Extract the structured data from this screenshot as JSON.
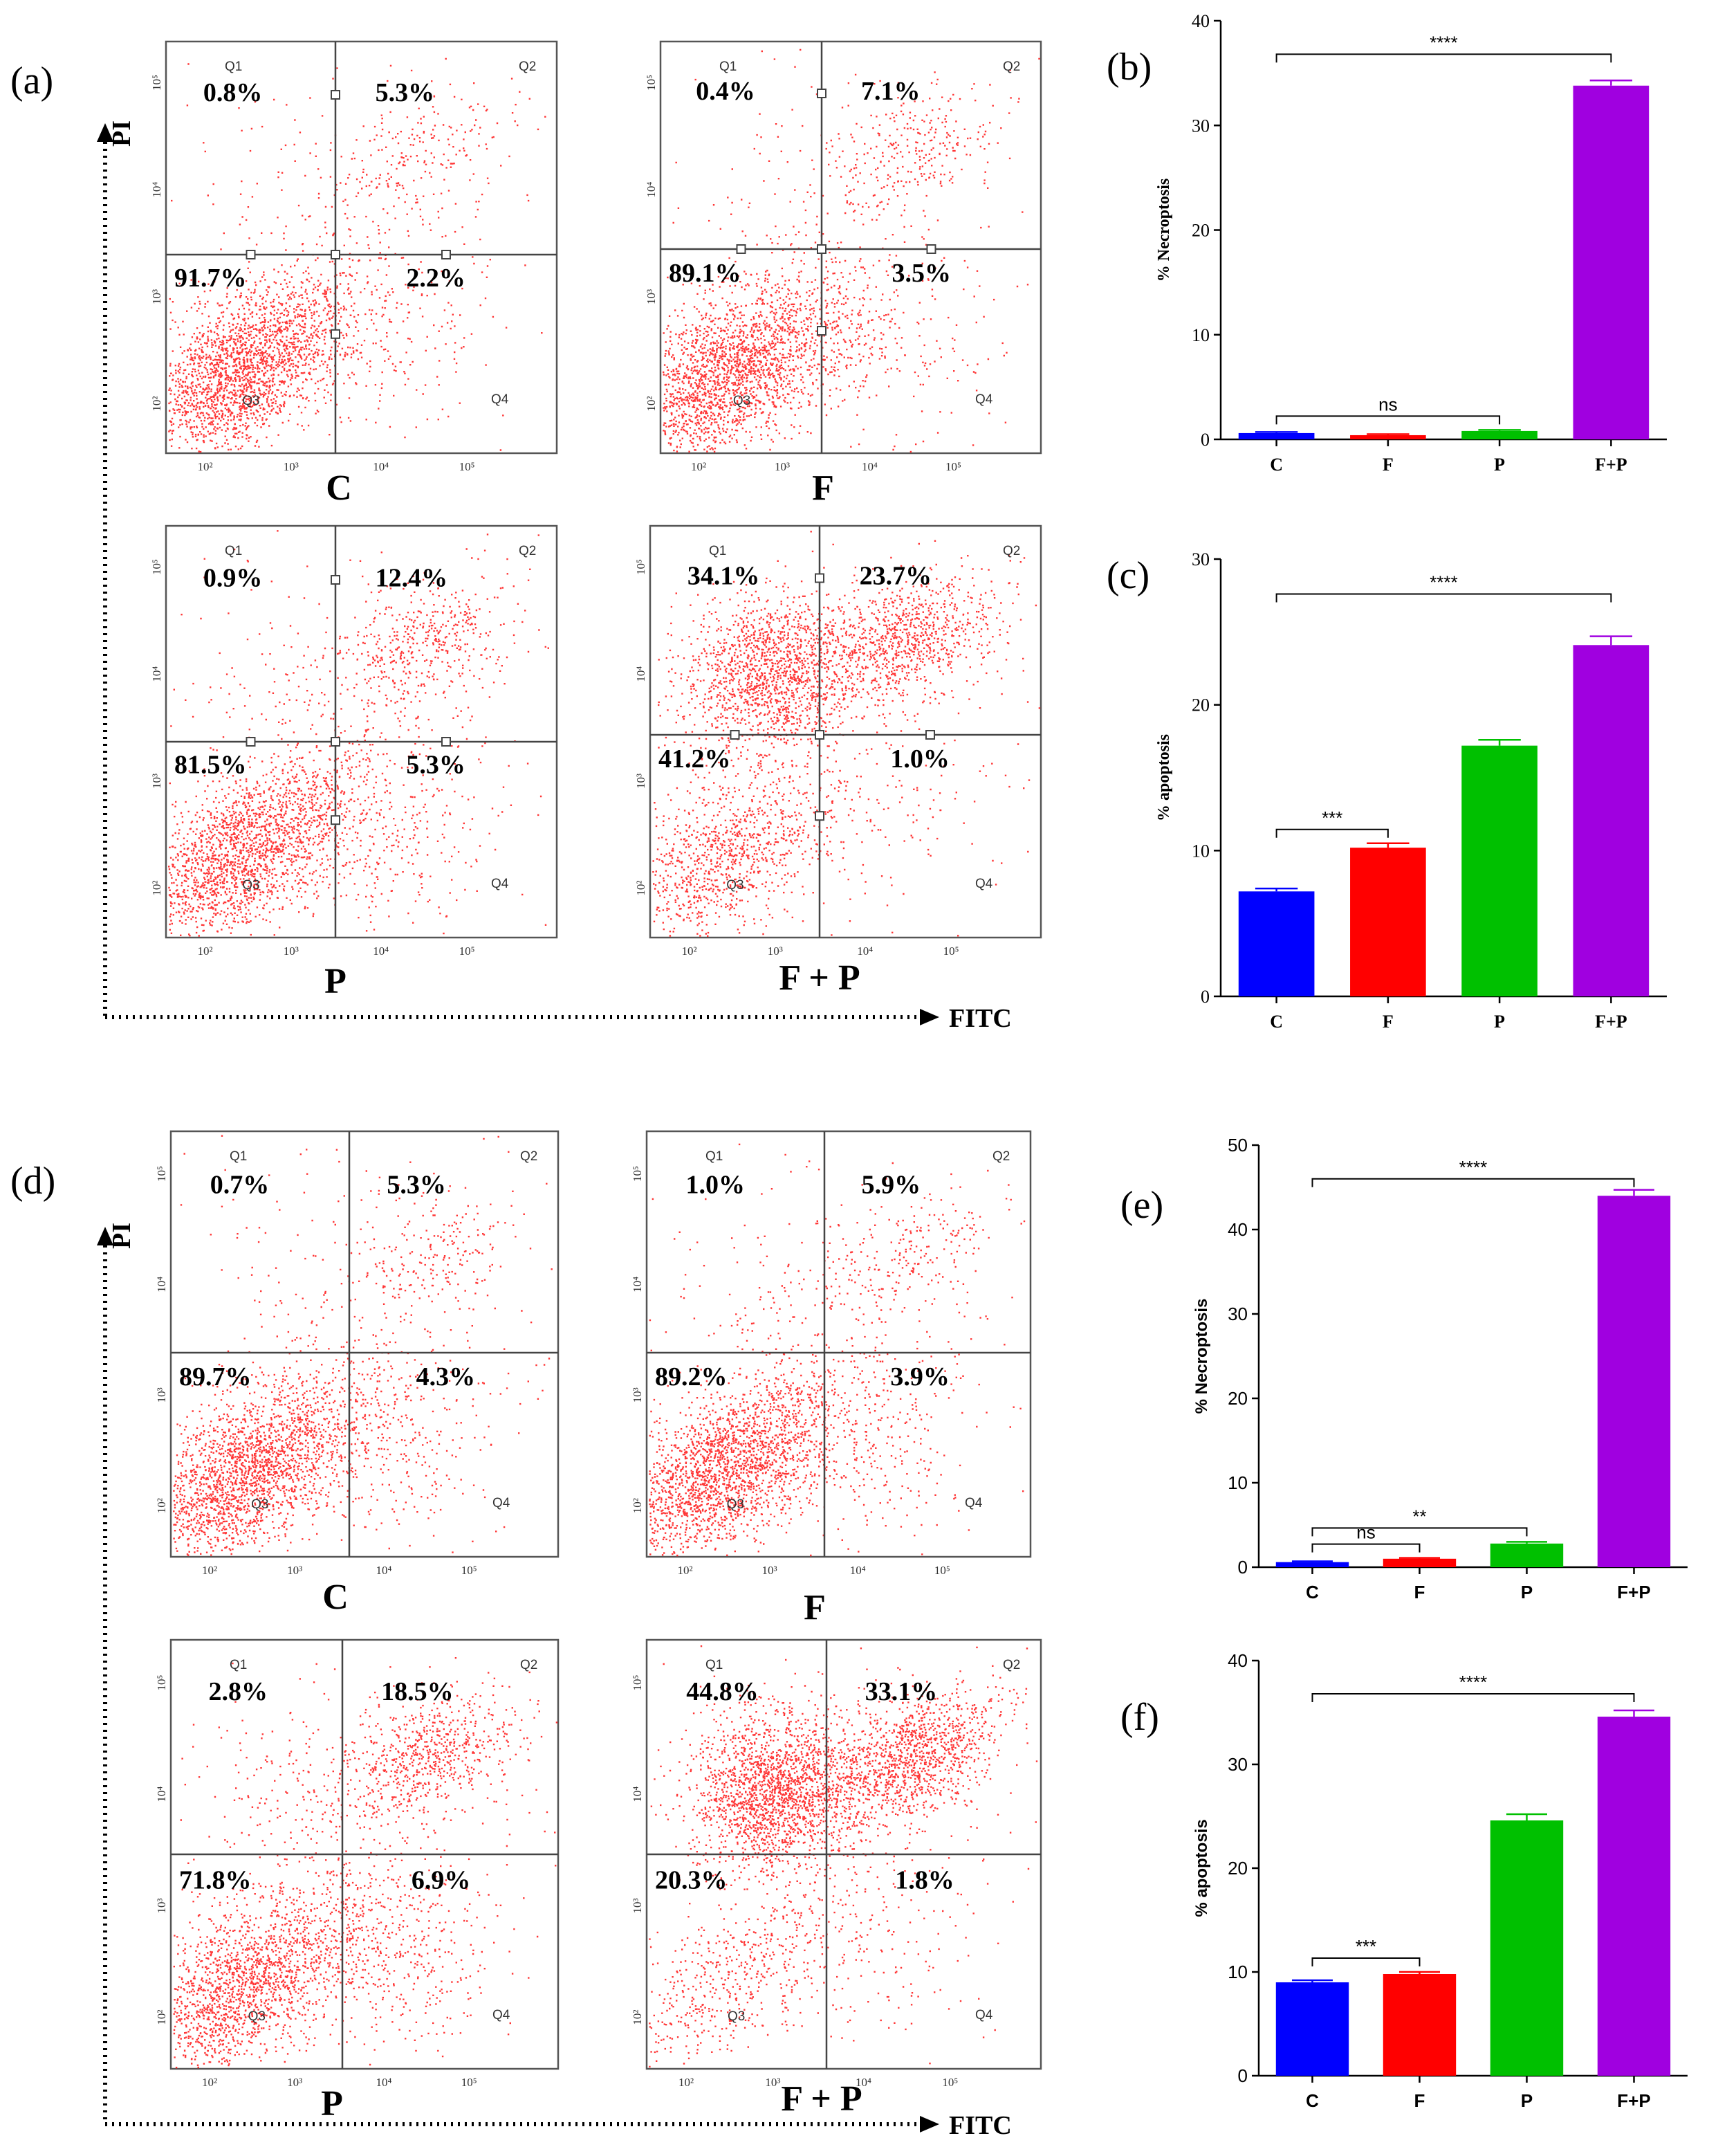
{
  "axes": {
    "x_name": "FITC",
    "y_name": "PI"
  },
  "flow_panels": [
    {
      "label": "(a)",
      "plots": [
        {
          "condition": "C",
          "q1": "0.8%",
          "q2": "5.3%",
          "q3": "91.7%",
          "q4": "2.2%"
        },
        {
          "condition": "F",
          "q1": "0.4%",
          "q2": "7.1%",
          "q3": "89.1%",
          "q4": "3.5%"
        },
        {
          "condition": "P",
          "q1": "0.9%",
          "q2": "12.4%",
          "q3": "81.5%",
          "q4": "5.3%"
        },
        {
          "condition": "F + P",
          "q1": "34.1%",
          "q2": "23.7%",
          "q3": "41.2%",
          "q4": "1.0%"
        }
      ]
    },
    {
      "label": "(d)",
      "plots": [
        {
          "condition": "C",
          "q1": "0.7%",
          "q2": "5.3%",
          "q3": "89.7%",
          "q4": "4.3%"
        },
        {
          "condition": "F",
          "q1": "1.0%",
          "q2": "5.9%",
          "q3": "89.2%",
          "q4": "3.9%"
        },
        {
          "condition": "P",
          "q1": "2.8%",
          "q2": "18.5%",
          "q3": "71.8%",
          "q4": "6.9%"
        },
        {
          "condition": "F + P",
          "q1": "44.8%",
          "q2": "33.1%",
          "q3": "20.3%",
          "q4": "1.8%"
        }
      ]
    }
  ],
  "quadrant_names": [
    "Q1",
    "Q2",
    "Q3",
    "Q4"
  ],
  "flow_ticks": [
    "10²",
    "10³",
    "10⁴",
    "10⁵"
  ],
  "chart_data": [
    {
      "label": "(b)",
      "type": "bar",
      "ylabel": "% Necroptosis",
      "categories": [
        "C",
        "F",
        "P",
        "F+P"
      ],
      "values": [
        0.6,
        0.4,
        0.8,
        33.8
      ],
      "errors": [
        0.1,
        0.1,
        0.1,
        0.5
      ],
      "ylim": [
        0,
        40
      ],
      "yticks": [
        0,
        10,
        20,
        30,
        40
      ],
      "colors": [
        "#0000ff",
        "#ff0000",
        "#00c000",
        "#a000e0"
      ],
      "significance": [
        {
          "from": 0,
          "to": 3,
          "text": "****"
        },
        {
          "from": 0,
          "to": 2,
          "text": "ns"
        }
      ]
    },
    {
      "label": "(c)",
      "type": "bar",
      "ylabel": "% apoptosis",
      "categories": [
        "C",
        "F",
        "P",
        "F+P"
      ],
      "values": [
        7.2,
        10.2,
        17.2,
        24.1
      ],
      "errors": [
        0.2,
        0.3,
        0.4,
        0.6
      ],
      "ylim": [
        0,
        30
      ],
      "yticks": [
        0,
        10,
        20,
        30
      ],
      "colors": [
        "#0000ff",
        "#ff0000",
        "#00c000",
        "#a000e0"
      ],
      "significance": [
        {
          "from": 0,
          "to": 3,
          "text": "****"
        },
        {
          "from": 0,
          "to": 1,
          "text": "***"
        }
      ]
    },
    {
      "label": "(e)",
      "type": "bar",
      "ylabel": "% Necroptosis",
      "categories": [
        "C",
        "F",
        "P",
        "F+P"
      ],
      "values": [
        0.6,
        1.0,
        2.8,
        44.0
      ],
      "errors": [
        0.1,
        0.1,
        0.2,
        0.7
      ],
      "ylim": [
        0,
        50
      ],
      "yticks": [
        0,
        10,
        20,
        30,
        40,
        50
      ],
      "colors": [
        "#0000ff",
        "#ff0000",
        "#00c000",
        "#a000e0"
      ],
      "significance": [
        {
          "from": 0,
          "to": 3,
          "text": "****"
        },
        {
          "from": 0,
          "to": 2,
          "text": "**"
        },
        {
          "from": 0,
          "to": 1,
          "text": "ns"
        }
      ]
    },
    {
      "label": "(f)",
      "type": "bar",
      "ylabel": "% apoptosis",
      "categories": [
        "C",
        "F",
        "P",
        "F+P"
      ],
      "values": [
        9.0,
        9.8,
        24.6,
        34.6
      ],
      "errors": [
        0.2,
        0.2,
        0.6,
        0.6
      ],
      "ylim": [
        0,
        40
      ],
      "yticks": [
        0,
        10,
        20,
        30,
        40
      ],
      "colors": [
        "#0000ff",
        "#ff0000",
        "#00c000",
        "#a000e0"
      ],
      "significance": [
        {
          "from": 0,
          "to": 3,
          "text": "****"
        },
        {
          "from": 0,
          "to": 1,
          "text": "***"
        }
      ]
    }
  ]
}
